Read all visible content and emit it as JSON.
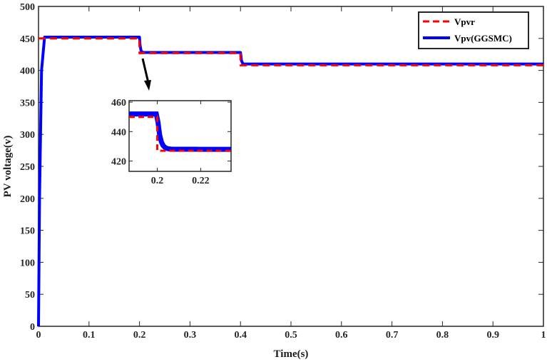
{
  "chart_data": {
    "type": "line",
    "xlabel": "Time(s)",
    "ylabel": "PV voltage(v)",
    "xlim": [
      0,
      1
    ],
    "ylim": [
      0,
      500
    ],
    "xticks": [
      0,
      0.1,
      0.2,
      0.3,
      0.4,
      0.5,
      0.6,
      0.7,
      0.8,
      0.9,
      1
    ],
    "yticks": [
      0,
      50,
      100,
      150,
      200,
      250,
      300,
      350,
      400,
      450,
      500
    ],
    "grid": false,
    "legend_position": "top-right",
    "series": [
      {
        "name": "Vpvr",
        "color": "#ff0000",
        "style": "dashed",
        "x": [
          0,
          0.2,
          0.2,
          0.4,
          0.4,
          1.0
        ],
        "y": [
          450,
          450,
          427,
          427,
          408,
          408
        ]
      },
      {
        "name": "Vpv(GGSMC)",
        "color": "#0000ff",
        "style": "solid",
        "x": [
          0,
          0.002,
          0.006,
          0.012,
          0.2,
          0.201,
          0.203,
          0.206,
          0.4,
          0.402,
          0.405,
          1.0
        ],
        "y": [
          0,
          200,
          400,
          452,
          452,
          440,
          431,
          428,
          428,
          415,
          410,
          410
        ]
      }
    ],
    "inset": {
      "xlim": [
        0.187,
        0.234
      ],
      "ylim": [
        413,
        461
      ],
      "xticks": [
        0.2,
        0.22
      ],
      "yticks": [
        420,
        440,
        460
      ]
    }
  }
}
